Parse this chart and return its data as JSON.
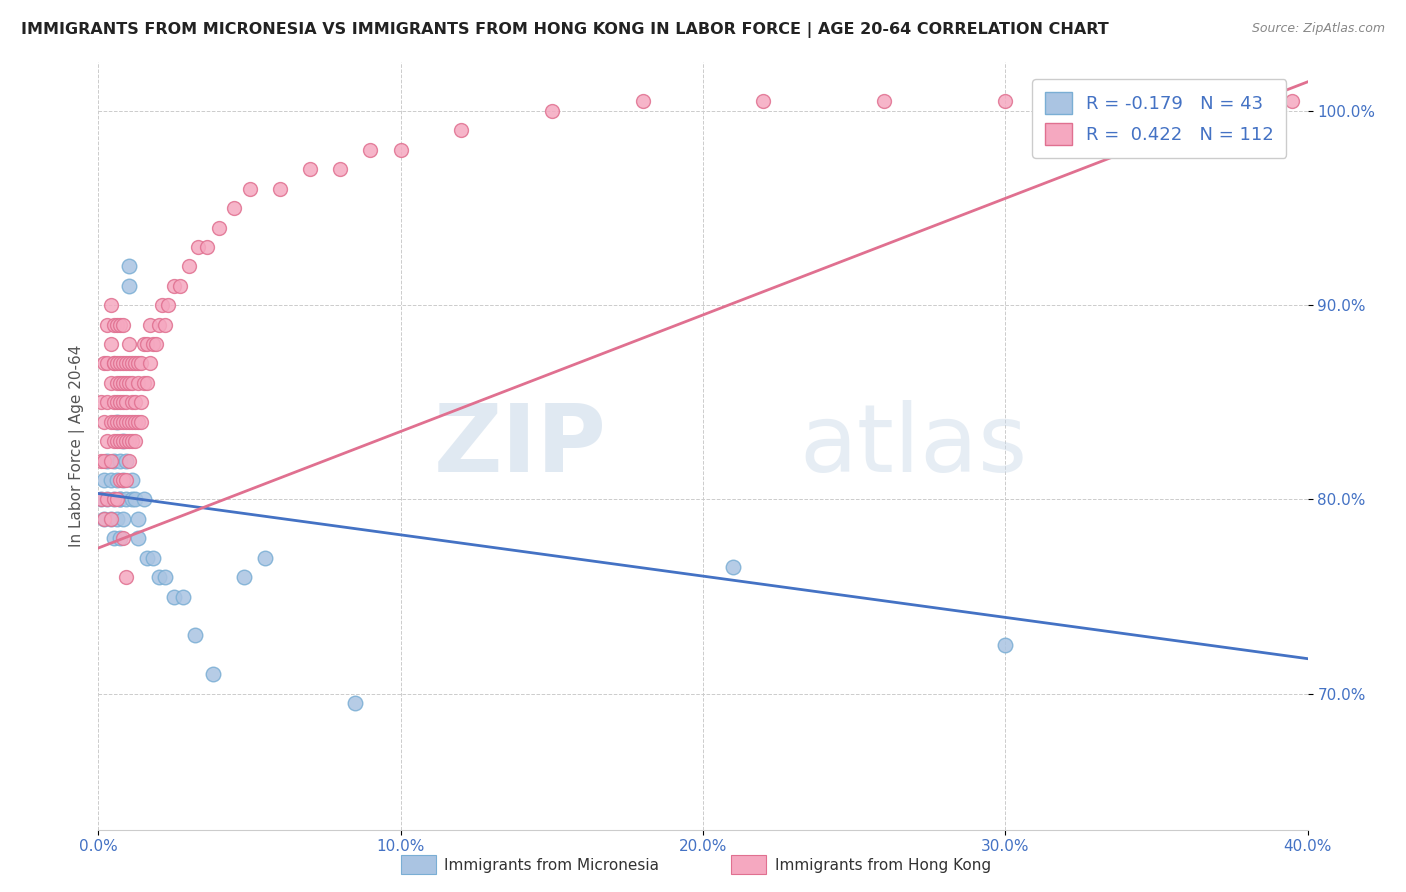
{
  "title": "IMMIGRANTS FROM MICRONESIA VS IMMIGRANTS FROM HONG KONG IN LABOR FORCE | AGE 20-64 CORRELATION CHART",
  "source": "Source: ZipAtlas.com",
  "ylabel": "In Labor Force | Age 20-64",
  "xlim": [
    0.0,
    0.4
  ],
  "ylim": [
    0.63,
    1.025
  ],
  "xticks": [
    0.0,
    0.1,
    0.2,
    0.3,
    0.4
  ],
  "yticks": [
    0.7,
    0.8,
    0.9,
    1.0
  ],
  "ytick_labels": [
    "70.0%",
    "80.0%",
    "90.0%",
    "100.0%"
  ],
  "xtick_labels": [
    "0.0%",
    "10.0%",
    "20.0%",
    "30.0%",
    "40.0%"
  ],
  "micronesia_color": "#aac4e2",
  "micronesia_edge": "#7aaed4",
  "hongkong_color": "#f5a8c0",
  "hongkong_edge": "#e07090",
  "micronesia_R": -0.179,
  "micronesia_N": 43,
  "hongkong_R": 0.422,
  "hongkong_N": 112,
  "legend_label_micronesia": "Immigrants from Micronesia",
  "legend_label_hongkong": "Immigrants from Hong Kong",
  "watermark_zip": "ZIP",
  "watermark_atlas": "atlas",
  "axis_color": "#4472c4",
  "reg_line_mic_color": "#4472c4",
  "reg_line_hk_color": "#e07090",
  "micronesia_x": [
    0.001,
    0.002,
    0.002,
    0.003,
    0.003,
    0.004,
    0.004,
    0.005,
    0.005,
    0.005,
    0.006,
    0.006,
    0.006,
    0.007,
    0.007,
    0.007,
    0.007,
    0.008,
    0.008,
    0.008,
    0.009,
    0.009,
    0.01,
    0.01,
    0.011,
    0.011,
    0.012,
    0.013,
    0.013,
    0.015,
    0.016,
    0.018,
    0.02,
    0.022,
    0.025,
    0.028,
    0.032,
    0.038,
    0.048,
    0.055,
    0.21,
    0.3,
    0.085
  ],
  "micronesia_y": [
    0.8,
    0.79,
    0.81,
    0.82,
    0.8,
    0.79,
    0.81,
    0.78,
    0.8,
    0.82,
    0.79,
    0.81,
    0.84,
    0.8,
    0.82,
    0.8,
    0.78,
    0.79,
    0.81,
    0.83,
    0.8,
    0.82,
    0.91,
    0.92,
    0.81,
    0.8,
    0.8,
    0.79,
    0.78,
    0.8,
    0.77,
    0.77,
    0.76,
    0.76,
    0.75,
    0.75,
    0.73,
    0.71,
    0.76,
    0.77,
    0.765,
    0.725,
    0.695
  ],
  "hongkong_x": [
    0.001,
    0.001,
    0.001,
    0.002,
    0.002,
    0.002,
    0.002,
    0.003,
    0.003,
    0.003,
    0.003,
    0.003,
    0.004,
    0.004,
    0.004,
    0.004,
    0.004,
    0.004,
    0.005,
    0.005,
    0.005,
    0.005,
    0.005,
    0.005,
    0.005,
    0.006,
    0.006,
    0.006,
    0.006,
    0.006,
    0.006,
    0.006,
    0.007,
    0.007,
    0.007,
    0.007,
    0.007,
    0.007,
    0.007,
    0.008,
    0.008,
    0.008,
    0.008,
    0.008,
    0.008,
    0.008,
    0.009,
    0.009,
    0.009,
    0.009,
    0.009,
    0.009,
    0.01,
    0.01,
    0.01,
    0.01,
    0.01,
    0.01,
    0.011,
    0.011,
    0.011,
    0.011,
    0.011,
    0.012,
    0.012,
    0.012,
    0.012,
    0.013,
    0.013,
    0.013,
    0.014,
    0.014,
    0.014,
    0.015,
    0.015,
    0.016,
    0.016,
    0.017,
    0.017,
    0.018,
    0.019,
    0.02,
    0.021,
    0.022,
    0.023,
    0.025,
    0.027,
    0.03,
    0.033,
    0.036,
    0.04,
    0.045,
    0.05,
    0.06,
    0.07,
    0.08,
    0.09,
    0.1,
    0.12,
    0.15,
    0.18,
    0.22,
    0.26,
    0.3,
    0.34,
    0.37,
    0.38,
    0.385,
    0.39,
    0.395,
    0.008,
    0.009
  ],
  "hongkong_y": [
    0.8,
    0.82,
    0.85,
    0.79,
    0.82,
    0.84,
    0.87,
    0.8,
    0.83,
    0.85,
    0.87,
    0.89,
    0.79,
    0.82,
    0.84,
    0.86,
    0.88,
    0.9,
    0.8,
    0.83,
    0.85,
    0.87,
    0.89,
    0.84,
    0.87,
    0.8,
    0.83,
    0.85,
    0.87,
    0.89,
    0.84,
    0.86,
    0.81,
    0.83,
    0.85,
    0.87,
    0.89,
    0.84,
    0.86,
    0.81,
    0.83,
    0.85,
    0.87,
    0.84,
    0.86,
    0.89,
    0.81,
    0.83,
    0.85,
    0.87,
    0.84,
    0.86,
    0.82,
    0.84,
    0.86,
    0.88,
    0.83,
    0.87,
    0.83,
    0.85,
    0.87,
    0.84,
    0.86,
    0.83,
    0.85,
    0.87,
    0.84,
    0.84,
    0.86,
    0.87,
    0.85,
    0.87,
    0.84,
    0.86,
    0.88,
    0.86,
    0.88,
    0.87,
    0.89,
    0.88,
    0.88,
    0.89,
    0.9,
    0.89,
    0.9,
    0.91,
    0.91,
    0.92,
    0.93,
    0.93,
    0.94,
    0.95,
    0.96,
    0.96,
    0.97,
    0.97,
    0.98,
    0.98,
    0.99,
    1.0,
    1.005,
    1.005,
    1.005,
    1.005,
    1.005,
    1.005,
    1.005,
    1.005,
    1.005,
    1.005,
    0.78,
    0.76
  ]
}
